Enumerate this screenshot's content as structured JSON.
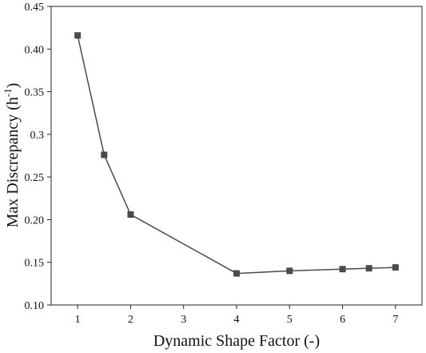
{
  "chart_data": {
    "type": "line",
    "title": "",
    "xlabel": "Dynamic Shape Factor (-)",
    "ylabel": {
      "prefix": "Max Discrepancy (h",
      "superscript": "-1",
      "suffix": ")"
    },
    "xlim": [
      0.5,
      7.5
    ],
    "ylim": [
      0.1,
      0.45
    ],
    "xticks": [
      1,
      2,
      3,
      4,
      5,
      6,
      7
    ],
    "xtick_labels": [
      "1",
      "2",
      "3",
      "4",
      "5",
      "6",
      "7"
    ],
    "yticks": [
      0.1,
      0.15,
      0.2,
      0.25,
      0.3,
      0.35,
      0.4,
      0.45
    ],
    "ytick_labels": [
      "0.10",
      "0.15",
      "0.20",
      "0.25",
      "0.3",
      "0.35",
      "0.40",
      "0.45"
    ],
    "grid": false,
    "legend": "none",
    "series": [
      {
        "marker": "square",
        "color": "#4a4a4a",
        "x": [
          1,
          1.5,
          2,
          4,
          5,
          6,
          6.5,
          7
        ],
        "y": [
          0.416,
          0.276,
          0.206,
          0.137,
          0.14,
          0.142,
          0.143,
          0.144
        ]
      }
    ]
  }
}
